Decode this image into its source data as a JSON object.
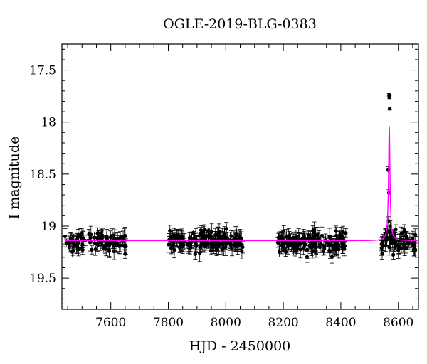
{
  "chart_data": {
    "type": "scatter",
    "title": "OGLE-2019-BLG-0383",
    "xlabel": "HJD - 2450000",
    "ylabel": "I magnitude",
    "xlim": [
      7430,
      8670
    ],
    "ylim": [
      19.8,
      17.25
    ],
    "y_inverted": true,
    "x_ticks": [
      7600,
      7800,
      8000,
      8200,
      8400,
      8600
    ],
    "y_ticks": [
      17.5,
      18,
      18.5,
      19,
      19.5
    ],
    "x_tick_labels": [
      "7600",
      "7800",
      "8000",
      "8200",
      "8400",
      "8600"
    ],
    "y_tick_labels": [
      "17.5",
      "18",
      "18.5",
      "19",
      "19.5"
    ],
    "grid": false,
    "series": [
      {
        "kind": "points",
        "color": "#000000",
        "baseline_segments": [
          {
            "x_start": 7440,
            "x_end": 7655,
            "n": 90
          },
          {
            "x_start": 7800,
            "x_end": 8060,
            "n": 160
          },
          {
            "x_start": 8180,
            "x_end": 8420,
            "n": 150
          },
          {
            "x_start": 8535,
            "x_end": 8660,
            "n": 70
          }
        ],
        "baseline_mag": 19.15,
        "scatter_mag": 0.13,
        "typical_error": 0.06,
        "peak_points": [
          {
            "x": 8565,
            "y": 18.46,
            "err": 0.03
          },
          {
            "x": 8567,
            "y": 18.68,
            "err": 0.03
          },
          {
            "x": 8568,
            "y": 17.74,
            "err": 0.015
          },
          {
            "x": 8569,
            "y": 17.76,
            "err": 0.015
          },
          {
            "x": 8570,
            "y": 17.87,
            "err": 0.015
          },
          {
            "x": 8566,
            "y": 18.95,
            "err": 0.04
          },
          {
            "x": 8563,
            "y": 19.05,
            "err": 0.05
          },
          {
            "x": 8572,
            "y": 19.0,
            "err": 0.05
          }
        ]
      },
      {
        "kind": "model",
        "color": "#ff00ff",
        "baseline_mag": 19.14,
        "peak_x": 8568.5,
        "peak_mag": 18.04,
        "width_days": 3.0
      }
    ]
  }
}
